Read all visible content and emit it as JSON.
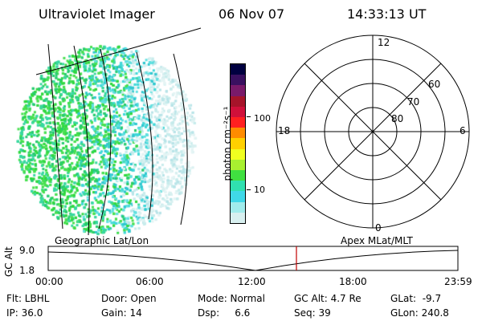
{
  "header": {
    "title": "Ultraviolet Imager",
    "date": "06 Nov 07",
    "time": "14:33:13 UT"
  },
  "colorbar": {
    "unit_label": "photon cm⁻²s⁻¹",
    "ticks": [
      "100",
      "10"
    ],
    "colors": [
      "#000040",
      "#3a1060",
      "#7a1a6a",
      "#a6142a",
      "#d0103a",
      "#ff2020",
      "#ff8c00",
      "#ffd000",
      "#f0ff20",
      "#a8f030",
      "#40e040",
      "#30e0b0",
      "#40d8e8",
      "#a0ecec",
      "#d8f0f0"
    ]
  },
  "polar_plot": {
    "mlt_labels": {
      "top": "12",
      "left": "18",
      "right": "6",
      "bottom": "0"
    },
    "lat_labels": [
      "60",
      "70",
      "80"
    ]
  },
  "timeline": {
    "left_label": "Geographic Lat/Lon",
    "right_label": "Apex MLat/MLT",
    "y_axis_label": "GC Alt",
    "y_ticks": [
      "9.0",
      "1.8"
    ],
    "x_ticks": [
      "00:00",
      "06:00",
      "12:00",
      "18:00",
      "23:59"
    ],
    "current_time_marker": "14:33"
  },
  "info": {
    "filter": "Flt: LBHL",
    "ip": "IP: 36.0",
    "door": "Door: Open",
    "gain": "Gain: 14",
    "mode": "Mode: Normal",
    "dsp": "Dsp:     6.6",
    "gc_alt": "GC Alt: 4.7 Re",
    "seq": "Seq: 39",
    "glat": "GLat:  -9.7",
    "glon": "GLon: 240.8"
  }
}
